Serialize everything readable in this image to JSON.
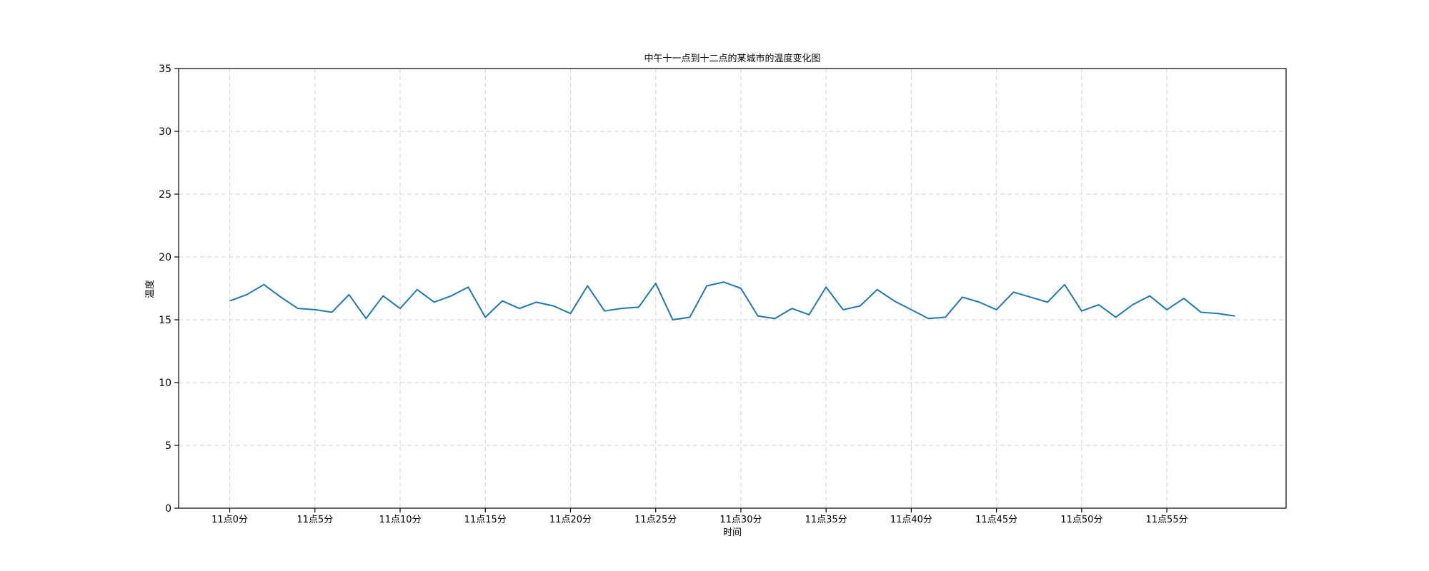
{
  "chart_data": {
    "type": "line",
    "title": "中午十一点到十二点的某城市的温度变化图",
    "xlabel": "时间",
    "ylabel": "温度",
    "ylim": [
      0,
      35
    ],
    "yticks": [
      0,
      5,
      10,
      15,
      20,
      25,
      30,
      35
    ],
    "x": [
      0,
      1,
      2,
      3,
      4,
      5,
      6,
      7,
      8,
      9,
      10,
      11,
      12,
      13,
      14,
      15,
      16,
      17,
      18,
      19,
      20,
      21,
      22,
      23,
      24,
      25,
      26,
      27,
      28,
      29,
      30,
      31,
      32,
      33,
      34,
      35,
      36,
      37,
      38,
      39,
      40,
      41,
      42,
      43,
      44,
      45,
      46,
      47,
      48,
      49,
      50,
      51,
      52,
      53,
      54,
      55,
      56,
      57,
      58,
      59
    ],
    "xlim": [
      -3,
      62
    ],
    "xticks": [
      0,
      5,
      10,
      15,
      20,
      25,
      30,
      35,
      40,
      45,
      50,
      55
    ],
    "xtick_labels": [
      "11点0分",
      "11点5分",
      "11点10分",
      "11点15分",
      "11点20分",
      "11点25分",
      "11点30分",
      "11点35分",
      "11点40分",
      "11点45分",
      "11点50分",
      "11点55分"
    ],
    "grid": true,
    "series": [
      {
        "color": "#1f77b4",
        "values": [
          16.5,
          17.0,
          17.8,
          16.8,
          15.9,
          15.8,
          15.6,
          17.0,
          15.1,
          16.9,
          15.9,
          17.4,
          16.4,
          16.9,
          17.6,
          15.2,
          16.5,
          15.9,
          16.4,
          16.1,
          15.5,
          17.7,
          15.7,
          15.9,
          16.0,
          17.9,
          15.0,
          15.2,
          17.7,
          18.0,
          17.5,
          15.3,
          15.1,
          15.9,
          15.4,
          17.6,
          15.8,
          16.1,
          17.4,
          16.5,
          15.8,
          15.1,
          15.2,
          16.8,
          16.4,
          15.8,
          17.2,
          16.8,
          16.4,
          17.8,
          15.7,
          16.2,
          15.2,
          16.2,
          16.9,
          15.8,
          16.7,
          15.6,
          15.5,
          15.3
        ]
      }
    ]
  }
}
